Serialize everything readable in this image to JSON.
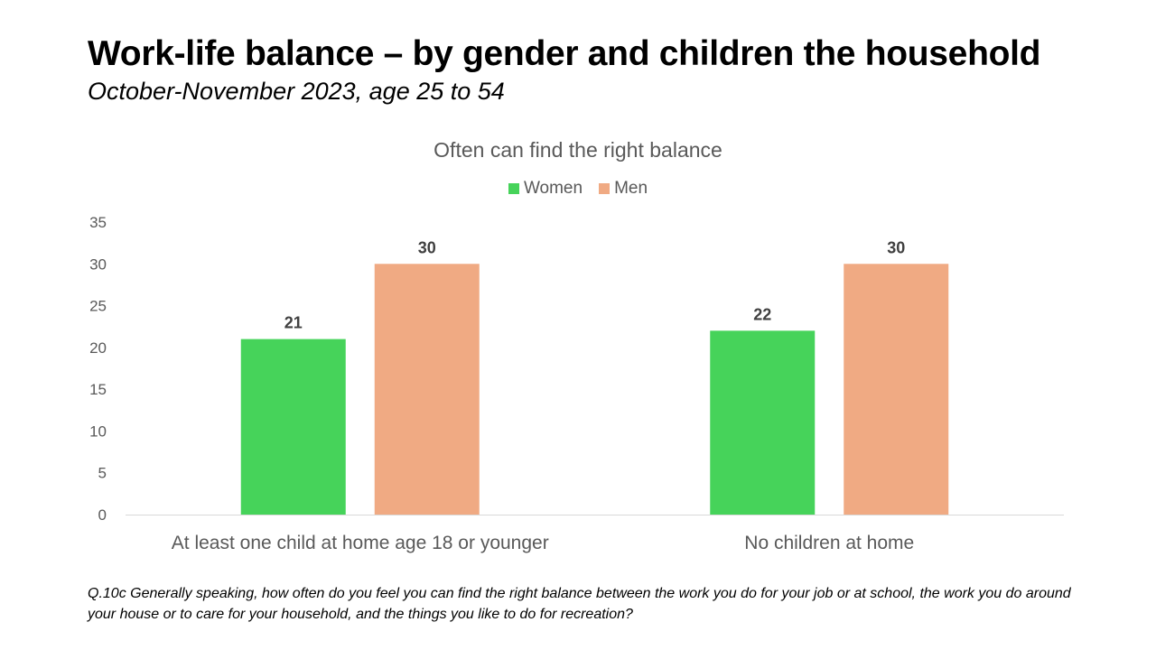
{
  "slide": {
    "title": "Work-life balance – by gender and children the household",
    "subtitle": "October-November 2023, age 25 to 54",
    "footnote": "Q.10c Generally speaking, how often do you feel you can find the right balance between the work you do for your job or at school, the work you do around your house or to care for your household, and the things you like to do for recreation?"
  },
  "chart_data": {
    "type": "bar",
    "title": "Often can find the right balance",
    "categories": [
      "At least one child at home age 18 or younger",
      "No children at home"
    ],
    "series": [
      {
        "name": "Women",
        "color": "#46d35a",
        "values": [
          21,
          22
        ]
      },
      {
        "name": "Men",
        "color": "#f0aa83",
        "values": [
          30,
          30
        ]
      }
    ],
    "ylim": [
      0,
      35
    ],
    "yticks": [
      0,
      5,
      10,
      15,
      20,
      25,
      30,
      35
    ],
    "grid": false,
    "legend": "top-center",
    "data_labels": true
  }
}
